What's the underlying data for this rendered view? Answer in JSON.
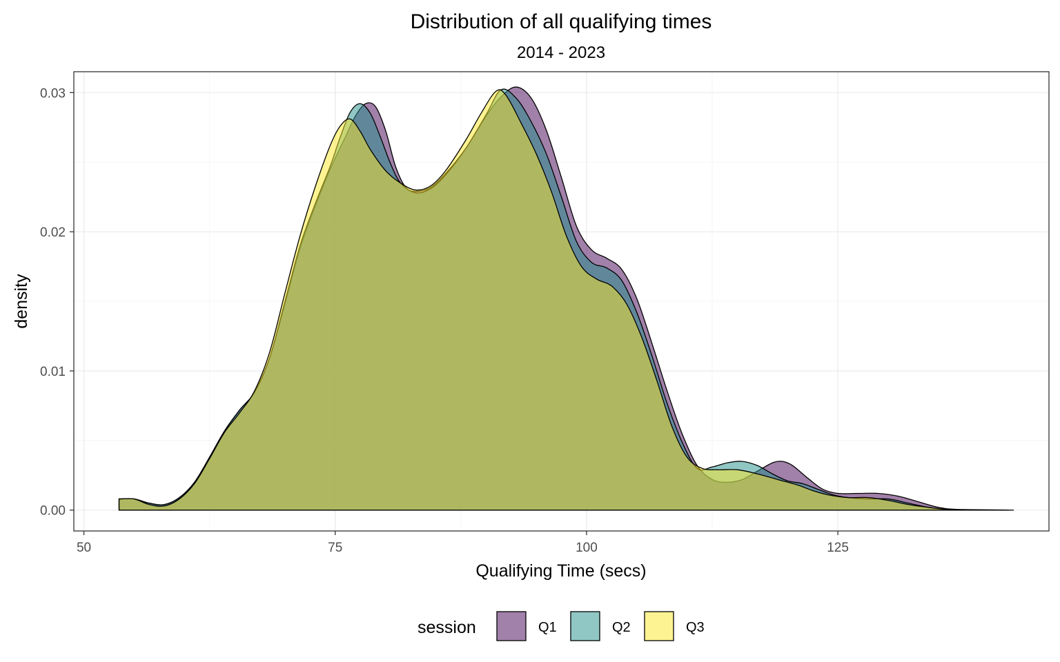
{
  "chart_data": {
    "type": "area",
    "title": "Distribution of all qualifying times",
    "subtitle": "2014 - 2023",
    "xlabel": "Qualifying Time (secs)",
    "ylabel": "density",
    "xlim": [
      49,
      146
    ],
    "ylim": [
      -0.0015,
      0.0315
    ],
    "x_ticks": [
      50,
      75,
      100,
      125
    ],
    "x_tick_labels": [
      "50",
      "75",
      "100",
      "125"
    ],
    "y_ticks": [
      0.0,
      0.01,
      0.02,
      0.03
    ],
    "y_tick_labels": [
      "0.00",
      "0.01",
      "0.02",
      "0.03"
    ],
    "grid": true,
    "legend": {
      "title": "session",
      "position": "bottom"
    },
    "series": [
      {
        "name": "Q1",
        "color": "#440154",
        "fill_opacity": 0.5,
        "points": [
          [
            53.5,
            0.0008
          ],
          [
            55,
            0.0008
          ],
          [
            56.5,
            0.0005
          ],
          [
            58,
            0.0004
          ],
          [
            59.5,
            0.0009
          ],
          [
            61,
            0.002
          ],
          [
            62.5,
            0.0038
          ],
          [
            64,
            0.0057
          ],
          [
            65.5,
            0.0072
          ],
          [
            67,
            0.0085
          ],
          [
            68.5,
            0.011
          ],
          [
            70,
            0.0148
          ],
          [
            71.5,
            0.0188
          ],
          [
            73,
            0.0218
          ],
          [
            74.5,
            0.0245
          ],
          [
            76,
            0.0268
          ],
          [
            77,
            0.0283
          ],
          [
            78,
            0.0292
          ],
          [
            79,
            0.029
          ],
          [
            80,
            0.0273
          ],
          [
            81,
            0.0247
          ],
          [
            82,
            0.0232
          ],
          [
            83,
            0.0229
          ],
          [
            84.5,
            0.0232
          ],
          [
            86,
            0.0242
          ],
          [
            88,
            0.026
          ],
          [
            90,
            0.0283
          ],
          [
            91.5,
            0.0297
          ],
          [
            93,
            0.0304
          ],
          [
            94.5,
            0.0296
          ],
          [
            96,
            0.0273
          ],
          [
            97.5,
            0.0239
          ],
          [
            99,
            0.0204
          ],
          [
            100.5,
            0.0187
          ],
          [
            102,
            0.0181
          ],
          [
            103.5,
            0.0173
          ],
          [
            105,
            0.0152
          ],
          [
            106.5,
            0.012
          ],
          [
            108,
            0.0086
          ],
          [
            109.5,
            0.0055
          ],
          [
            111,
            0.0032
          ],
          [
            112.5,
            0.0022
          ],
          [
            114,
            0.002
          ],
          [
            115.5,
            0.0022
          ],
          [
            117,
            0.0028
          ],
          [
            118.5,
            0.0034
          ],
          [
            119.5,
            0.0035
          ],
          [
            120.5,
            0.0032
          ],
          [
            122,
            0.0023
          ],
          [
            123.5,
            0.0015
          ],
          [
            125,
            0.0012
          ],
          [
            127,
            0.0012
          ],
          [
            129,
            0.0012
          ],
          [
            131,
            0.001
          ],
          [
            133,
            0.0006
          ],
          [
            135,
            0.0002
          ],
          [
            137,
            5e-05
          ],
          [
            142.5,
            0.0
          ]
        ]
      },
      {
        "name": "Q2",
        "color": "#21908C",
        "fill_opacity": 0.5,
        "points": [
          [
            53.5,
            0.0008
          ],
          [
            55,
            0.0008
          ],
          [
            56.5,
            0.0005
          ],
          [
            58,
            0.0004
          ],
          [
            59.5,
            0.0009
          ],
          [
            61,
            0.002
          ],
          [
            62.5,
            0.0038
          ],
          [
            64,
            0.0057
          ],
          [
            65.5,
            0.0072
          ],
          [
            67,
            0.0085
          ],
          [
            68.5,
            0.011
          ],
          [
            70,
            0.015
          ],
          [
            71.5,
            0.019
          ],
          [
            73,
            0.022
          ],
          [
            74.5,
            0.0247
          ],
          [
            75.5,
            0.0268
          ],
          [
            76.5,
            0.0286
          ],
          [
            77.5,
            0.0292
          ],
          [
            78.5,
            0.0285
          ],
          [
            79.5,
            0.0268
          ],
          [
            80.5,
            0.0249
          ],
          [
            81.5,
            0.0235
          ],
          [
            83,
            0.0228
          ],
          [
            84.5,
            0.0231
          ],
          [
            86,
            0.0241
          ],
          [
            88,
            0.026
          ],
          [
            90,
            0.0284
          ],
          [
            91.5,
            0.0302
          ],
          [
            93,
            0.0296
          ],
          [
            94.5,
            0.0279
          ],
          [
            96,
            0.0256
          ],
          [
            97.5,
            0.0225
          ],
          [
            99,
            0.0193
          ],
          [
            100.5,
            0.0178
          ],
          [
            102,
            0.0174
          ],
          [
            103.5,
            0.0165
          ],
          [
            105,
            0.0142
          ],
          [
            106.5,
            0.0111
          ],
          [
            108,
            0.0077
          ],
          [
            109.5,
            0.0049
          ],
          [
            111,
            0.003
          ],
          [
            112.5,
            0.0031
          ],
          [
            114,
            0.0034
          ],
          [
            115.5,
            0.0035
          ],
          [
            117,
            0.0032
          ],
          [
            118.5,
            0.0026
          ],
          [
            120,
            0.0021
          ],
          [
            121.5,
            0.0019
          ],
          [
            123,
            0.0015
          ],
          [
            124.5,
            0.0011
          ],
          [
            126,
            0.0009
          ],
          [
            128,
            0.0008
          ],
          [
            130,
            0.0008
          ],
          [
            132,
            0.0005
          ],
          [
            134,
            0.0002
          ],
          [
            136,
            5e-05
          ],
          [
            142,
            0.0
          ]
        ]
      },
      {
        "name": "Q3",
        "color": "#FDE725",
        "fill_opacity": 0.5,
        "points": [
          [
            53.5,
            0.0008
          ],
          [
            55,
            0.0008
          ],
          [
            56.5,
            0.0004
          ],
          [
            58,
            0.0003
          ],
          [
            59.5,
            0.0008
          ],
          [
            61,
            0.0019
          ],
          [
            62.5,
            0.0037
          ],
          [
            64,
            0.0056
          ],
          [
            65.5,
            0.007
          ],
          [
            67,
            0.0086
          ],
          [
            68.5,
            0.0114
          ],
          [
            70,
            0.0156
          ],
          [
            71.5,
            0.0197
          ],
          [
            73,
            0.0232
          ],
          [
            74.5,
            0.0262
          ],
          [
            75.5,
            0.0276
          ],
          [
            76.5,
            0.0281
          ],
          [
            77.5,
            0.0272
          ],
          [
            78.5,
            0.0259
          ],
          [
            80,
            0.0244
          ],
          [
            81.5,
            0.0235
          ],
          [
            83,
            0.023
          ],
          [
            84.5,
            0.0233
          ],
          [
            86,
            0.0244
          ],
          [
            88,
            0.0266
          ],
          [
            89.5,
            0.0285
          ],
          [
            91,
            0.0301
          ],
          [
            92,
            0.0298
          ],
          [
            93.5,
            0.0278
          ],
          [
            95,
            0.0256
          ],
          [
            96.5,
            0.0229
          ],
          [
            98,
            0.0197
          ],
          [
            99.5,
            0.0175
          ],
          [
            101,
            0.0166
          ],
          [
            102.5,
            0.0161
          ],
          [
            104,
            0.0148
          ],
          [
            105.5,
            0.0124
          ],
          [
            107,
            0.0093
          ],
          [
            108.5,
            0.006
          ],
          [
            110,
            0.0038
          ],
          [
            111.5,
            0.003
          ],
          [
            113,
            0.0029
          ],
          [
            115,
            0.0029
          ],
          [
            117,
            0.0026
          ],
          [
            119,
            0.0022
          ],
          [
            121,
            0.0018
          ],
          [
            122.5,
            0.0014
          ],
          [
            124,
            0.0011
          ],
          [
            126,
            0.0009
          ],
          [
            128,
            0.0009
          ],
          [
            130,
            0.0007
          ],
          [
            132,
            0.0004
          ],
          [
            134,
            0.0002
          ],
          [
            136,
            5e-05
          ],
          [
            140,
            0.0
          ]
        ]
      }
    ]
  }
}
